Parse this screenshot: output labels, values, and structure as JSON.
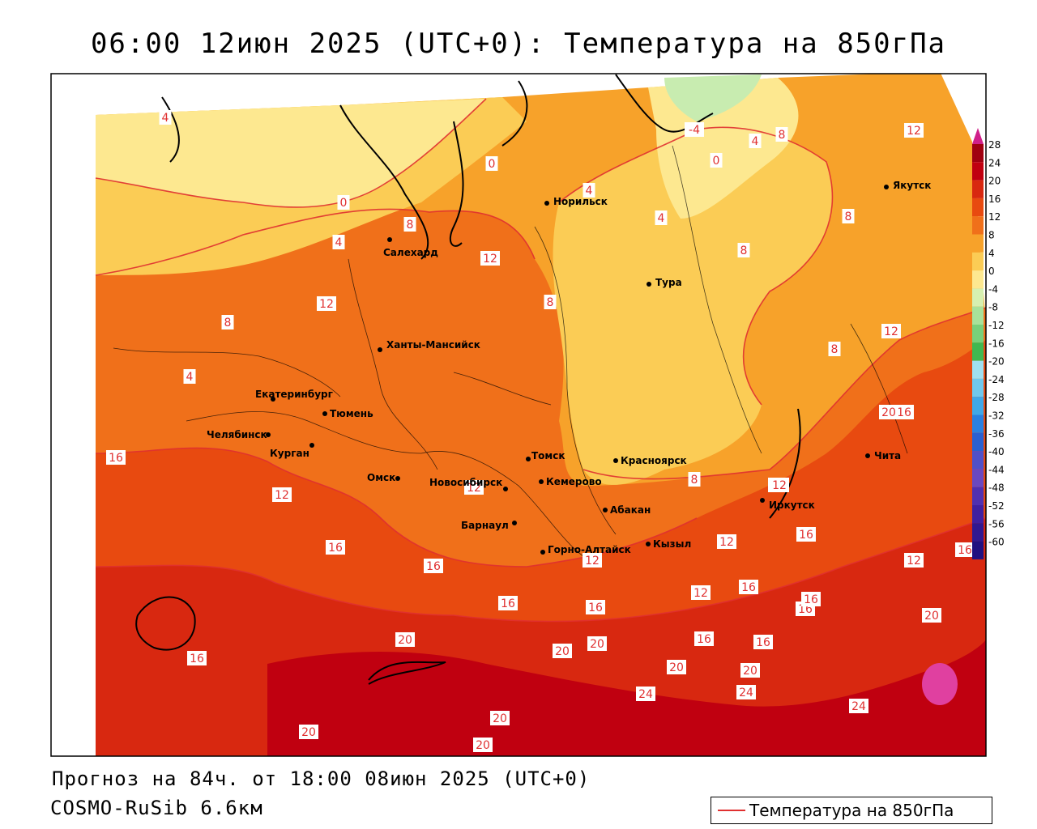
{
  "title": "06:00 12июн 2025 (UTC+0): Температура на 850гПа",
  "forecast_line": "Прогноз на 84ч. от 18:00 08июн 2025 (UTC+0)",
  "model_line": "COSMO-RuSib 6.6км",
  "legend_label": "Температура на 850гПа",
  "colorbar": {
    "ticks": [
      "28",
      "24",
      "20",
      "16",
      "12",
      "8",
      "4",
      "0",
      "-4",
      "-8",
      "-12",
      "-16",
      "-20",
      "-24",
      "-28",
      "-32",
      "-36",
      "-40",
      "-44",
      "-48",
      "-52",
      "-56",
      "-60"
    ],
    "colors": [
      "#a00010",
      "#c00010",
      "#d82810",
      "#e84a10",
      "#f0701a",
      "#f7a22a",
      "#fbcc55",
      "#fde890",
      "#d6f0b0",
      "#a8e29a",
      "#78d07a",
      "#40b850",
      "#a0e0f0",
      "#70c8ec",
      "#40a8e8",
      "#2a80e0",
      "#2a60d0",
      "#5050c8",
      "#6a48c0",
      "#5030b0",
      "#4020a0",
      "#301890",
      "#201080"
    ]
  },
  "cities": [
    {
      "name": "Норильск"
    },
    {
      "name": "Якутск"
    },
    {
      "name": "Салехард"
    },
    {
      "name": "Тура"
    },
    {
      "name": "Ханты-Мансийск"
    },
    {
      "name": "Екатеринбург"
    },
    {
      "name": "Тюмень"
    },
    {
      "name": "Челябинск"
    },
    {
      "name": "Курган"
    },
    {
      "name": "Омск"
    },
    {
      "name": "Новосибирск"
    },
    {
      "name": "Томск"
    },
    {
      "name": "Кемерово"
    },
    {
      "name": "Красноярск"
    },
    {
      "name": "Барнаул"
    },
    {
      "name": "Абакан"
    },
    {
      "name": "Горно-Алтайск"
    },
    {
      "name": "Кызыл"
    },
    {
      "name": "Иркутск"
    },
    {
      "name": "Чита"
    }
  ],
  "contour_labels": [
    "4",
    "0",
    "0",
    "4",
    "8",
    "12",
    "12",
    "8",
    "8",
    "4",
    "4",
    "4",
    "0",
    "-4",
    "4",
    "8",
    "8",
    "12",
    "8",
    "12",
    "8",
    "12",
    "8",
    "12",
    "16",
    "12",
    "16",
    "12",
    "16",
    "16",
    "16",
    "16",
    "12",
    "16",
    "16",
    "16",
    "16",
    "16",
    "20",
    "20",
    "20",
    "20",
    "20",
    "20",
    "24",
    "24",
    "20",
    "20",
    "20",
    "12",
    "16",
    "16",
    "12",
    "16",
    "12",
    "16",
    "24",
    "20"
  ]
}
